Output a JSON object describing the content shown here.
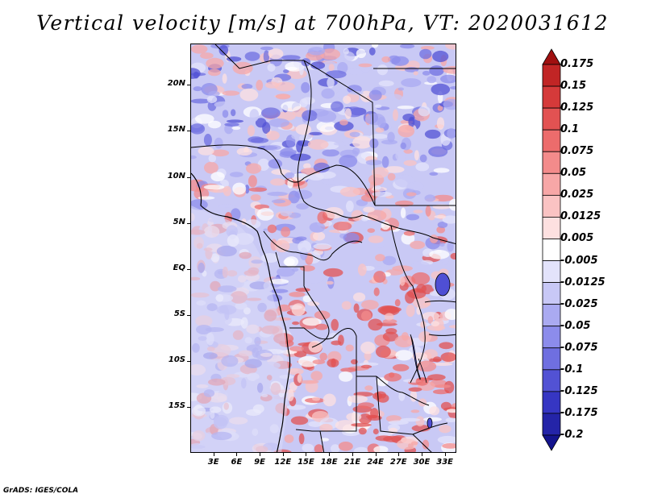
{
  "title": "Vertical velocity [m/s] at 700hPa, VT: 2020031612",
  "credit": "GrADS: IGES/COLA",
  "map": {
    "region": "Central Africa",
    "lon_range": [
      0,
      34.5
    ],
    "lat_range": [
      -20,
      24.5
    ],
    "y_axis_labels": [
      {
        "lat": 20,
        "text": "20N"
      },
      {
        "lat": 15,
        "text": "15N"
      },
      {
        "lat": 10,
        "text": "10N"
      },
      {
        "lat": 5,
        "text": "5N"
      },
      {
        "lat": 0,
        "text": "EQ"
      },
      {
        "lat": -5,
        "text": "5S"
      },
      {
        "lat": -10,
        "text": "10S"
      },
      {
        "lat": -15,
        "text": "15S"
      }
    ],
    "x_axis_labels": [
      {
        "lon": 3,
        "text": "3E"
      },
      {
        "lon": 6,
        "text": "6E"
      },
      {
        "lon": 9,
        "text": "9E"
      },
      {
        "lon": 12,
        "text": "12E"
      },
      {
        "lon": 15,
        "text": "15E"
      },
      {
        "lon": 18,
        "text": "18E"
      },
      {
        "lon": 21,
        "text": "21E"
      },
      {
        "lon": 24,
        "text": "24E"
      },
      {
        "lon": 27,
        "text": "27E"
      },
      {
        "lon": 30,
        "text": "30E"
      },
      {
        "lon": 33,
        "text": "33E"
      }
    ]
  },
  "colorbar": {
    "levels": [
      "0.175",
      "0.15",
      "0.125",
      "0.1",
      "0.075",
      "0.05",
      "0.025",
      "0.0125",
      "0.005",
      "-0.005",
      "-0.0125",
      "-0.025",
      "-0.05",
      "-0.075",
      "-0.1",
      "-0.125",
      "-0.175",
      "-0.2"
    ],
    "colors": [
      "#a01010",
      "#c12525",
      "#d53a3a",
      "#e25252",
      "#ec6c6c",
      "#f38b8b",
      "#f7a7a7",
      "#fac3c3",
      "#fde0e0",
      "#ffffff",
      "#e3e3fb",
      "#c8c8f6",
      "#aaaaf1",
      "#8c8ceb",
      "#6f6fe0",
      "#5252d4",
      "#3636c3",
      "#2424a8",
      "#14148e"
    ]
  }
}
